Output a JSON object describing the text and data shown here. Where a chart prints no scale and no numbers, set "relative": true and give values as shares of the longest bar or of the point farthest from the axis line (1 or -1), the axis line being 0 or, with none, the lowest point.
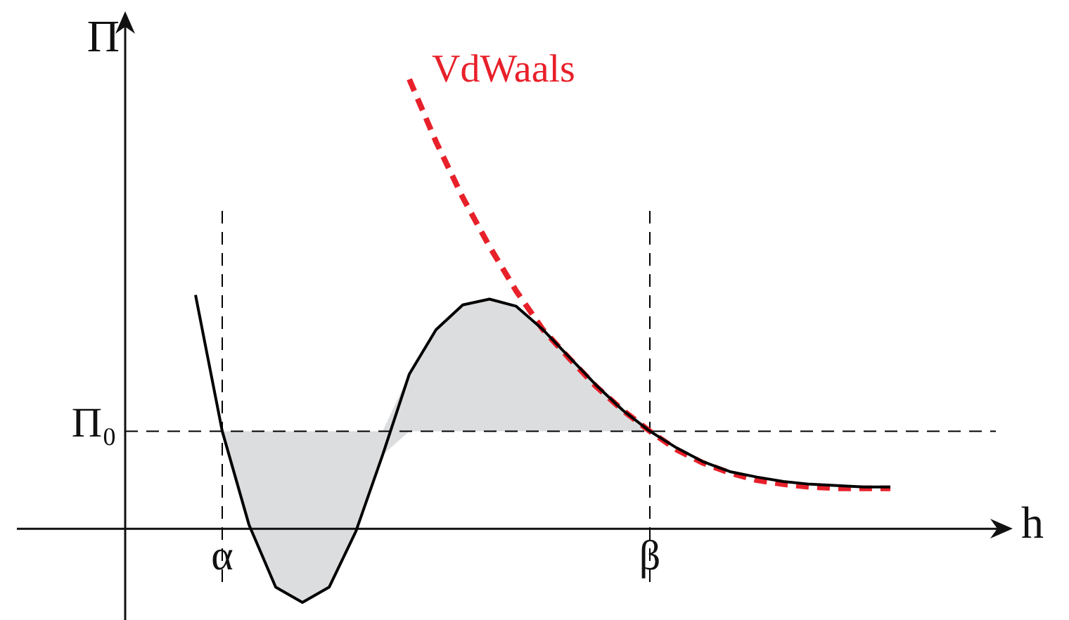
{
  "chart_data": {
    "type": "line",
    "relative": true,
    "xlabel": "h",
    "ylabel": "Π",
    "legend": false,
    "grid": false,
    "marker": "none",
    "categories": [
      null,
      null,
      null,
      "α",
      null,
      null,
      null,
      null,
      null,
      null,
      null,
      null,
      null,
      null,
      null,
      null,
      null,
      null,
      null,
      "β",
      null,
      null,
      null,
      null,
      null,
      null,
      null,
      null,
      null,
      null,
      null,
      null,
      null,
      null
    ],
    "series": [
      {
        "color": "#000000",
        "line_style": "solid",
        "values": [
          null,
          null,
          0.52,
          0.217,
          0.009,
          -0.13,
          -0.164,
          -0.13,
          -0.006,
          0.164,
          0.344,
          0.443,
          0.498,
          0.511,
          0.495,
          0.443,
          0.381,
          0.319,
          0.263,
          0.217,
          0.18,
          0.149,
          0.127,
          0.115,
          0.105,
          0.099,
          0.096,
          0.093,
          0.093,
          null,
          null,
          null,
          null,
          null
        ],
        "lower": [
          null,
          null,
          null,
          0.217,
          0.009,
          -0.13,
          -0.164,
          -0.13,
          -0.006,
          0.164,
          0.217,
          0.217,
          0.217,
          0.217,
          0.217,
          0.217,
          0.217,
          0.217,
          0.217,
          0.217,
          null,
          null,
          null,
          null,
          null,
          null,
          null,
          null,
          null,
          null,
          null,
          null,
          null,
          null
        ],
        "upper": [
          null,
          null,
          null,
          0.217,
          0.217,
          0.217,
          0.217,
          0.217,
          0.217,
          0.217,
          0.344,
          0.443,
          0.498,
          0.511,
          0.495,
          0.443,
          0.381,
          0.319,
          0.263,
          0.217,
          null,
          null,
          null,
          null,
          null,
          null,
          null,
          null,
          null,
          null,
          null,
          null,
          null,
          null
        ]
      },
      {
        "name": "VdWaals",
        "color": "#e8202a",
        "line_style": "dashed",
        "values": [
          null,
          null,
          null,
          null,
          null,
          null,
          null,
          null,
          null,
          null,
          1,
          0.861,
          0.737,
          0.628,
          0.529,
          0.443,
          0.378,
          0.316,
          0.263,
          0.217,
          0.176,
          0.146,
          0.124,
          0.108,
          0.099,
          0.093,
          0.09,
          0.09,
          0.09,
          null,
          null,
          null,
          null,
          null
        ]
      }
    ],
    "ref_lines": [
      {
        "axis": "y",
        "value": 0.217,
        "label": "Π₀",
        "line_style": "dashed",
        "color": "#000000"
      },
      {
        "axis": "x",
        "value": "α",
        "line_style": "dashed",
        "color": "#000000"
      },
      {
        "axis": "x",
        "value": "β",
        "line_style": "dashed",
        "color": "#000000"
      }
    ]
  }
}
